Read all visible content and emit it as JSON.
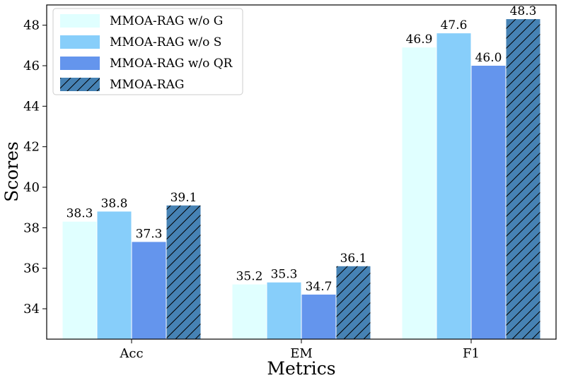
{
  "chart_data": {
    "type": "bar",
    "title": "",
    "xlabel": "Metrics",
    "ylabel": "Scores",
    "categories": [
      "Acc",
      "EM",
      "F1"
    ],
    "ylim": [
      32.5,
      49
    ],
    "yticks": [
      34,
      36,
      38,
      40,
      42,
      44,
      46,
      48
    ],
    "ytick_labels": [
      "34",
      "36",
      "38",
      "40",
      "42",
      "44",
      "46",
      "48"
    ],
    "grid": false,
    "legend_position": "top-left",
    "series": [
      {
        "name": "MMOA-RAG w/o G",
        "values": [
          38.3,
          35.2,
          46.9
        ],
        "labels": [
          "38.3",
          "35.2",
          "46.9"
        ],
        "color": "#e0ffff",
        "hatch": false
      },
      {
        "name": "MMOA-RAG w/o S",
        "values": [
          38.8,
          35.3,
          47.6
        ],
        "labels": [
          "38.8",
          "35.3",
          "47.6"
        ],
        "color": "#87cefa",
        "hatch": false
      },
      {
        "name": "MMOA-RAG w/o QR",
        "values": [
          37.3,
          34.7,
          46.0
        ],
        "labels": [
          "37.3",
          "34.7",
          "46.0"
        ],
        "color": "#6495ed",
        "hatch": false
      },
      {
        "name": "MMOA-RAG",
        "values": [
          39.1,
          36.1,
          48.3
        ],
        "labels": [
          "39.1",
          "36.1",
          "48.3"
        ],
        "color": "#4682b4",
        "hatch": true
      }
    ]
  }
}
